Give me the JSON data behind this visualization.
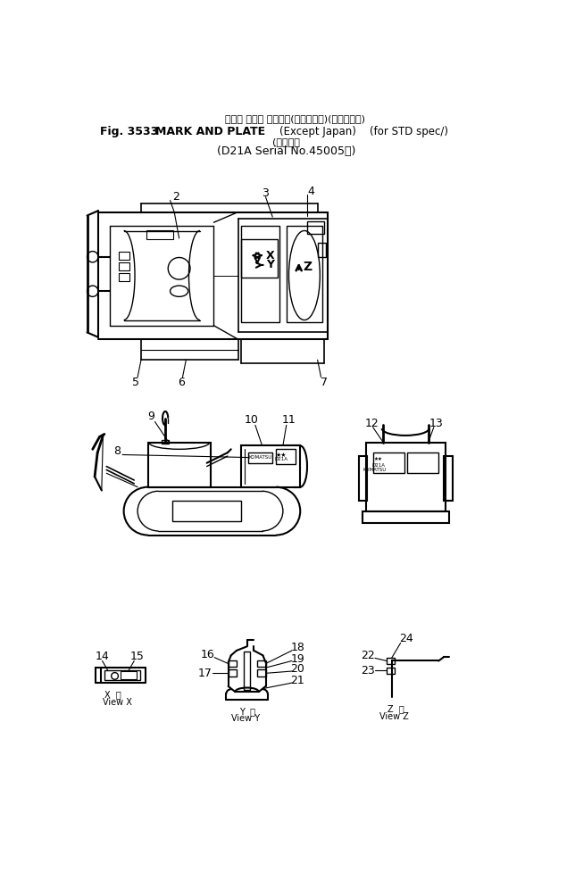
{
  "title_line1_jp": "マーク および プレート(海　外　向)(一般輸出用)",
  "title_line2": "Fig. 3533  MARK AND PLATE(Except Japan)(for STD spec/)",
  "title_line3_jp": "適用号機",
  "title_line4": "(D21A Serial No.45005～)",
  "bg_color": "#ffffff",
  "lc": "#000000"
}
